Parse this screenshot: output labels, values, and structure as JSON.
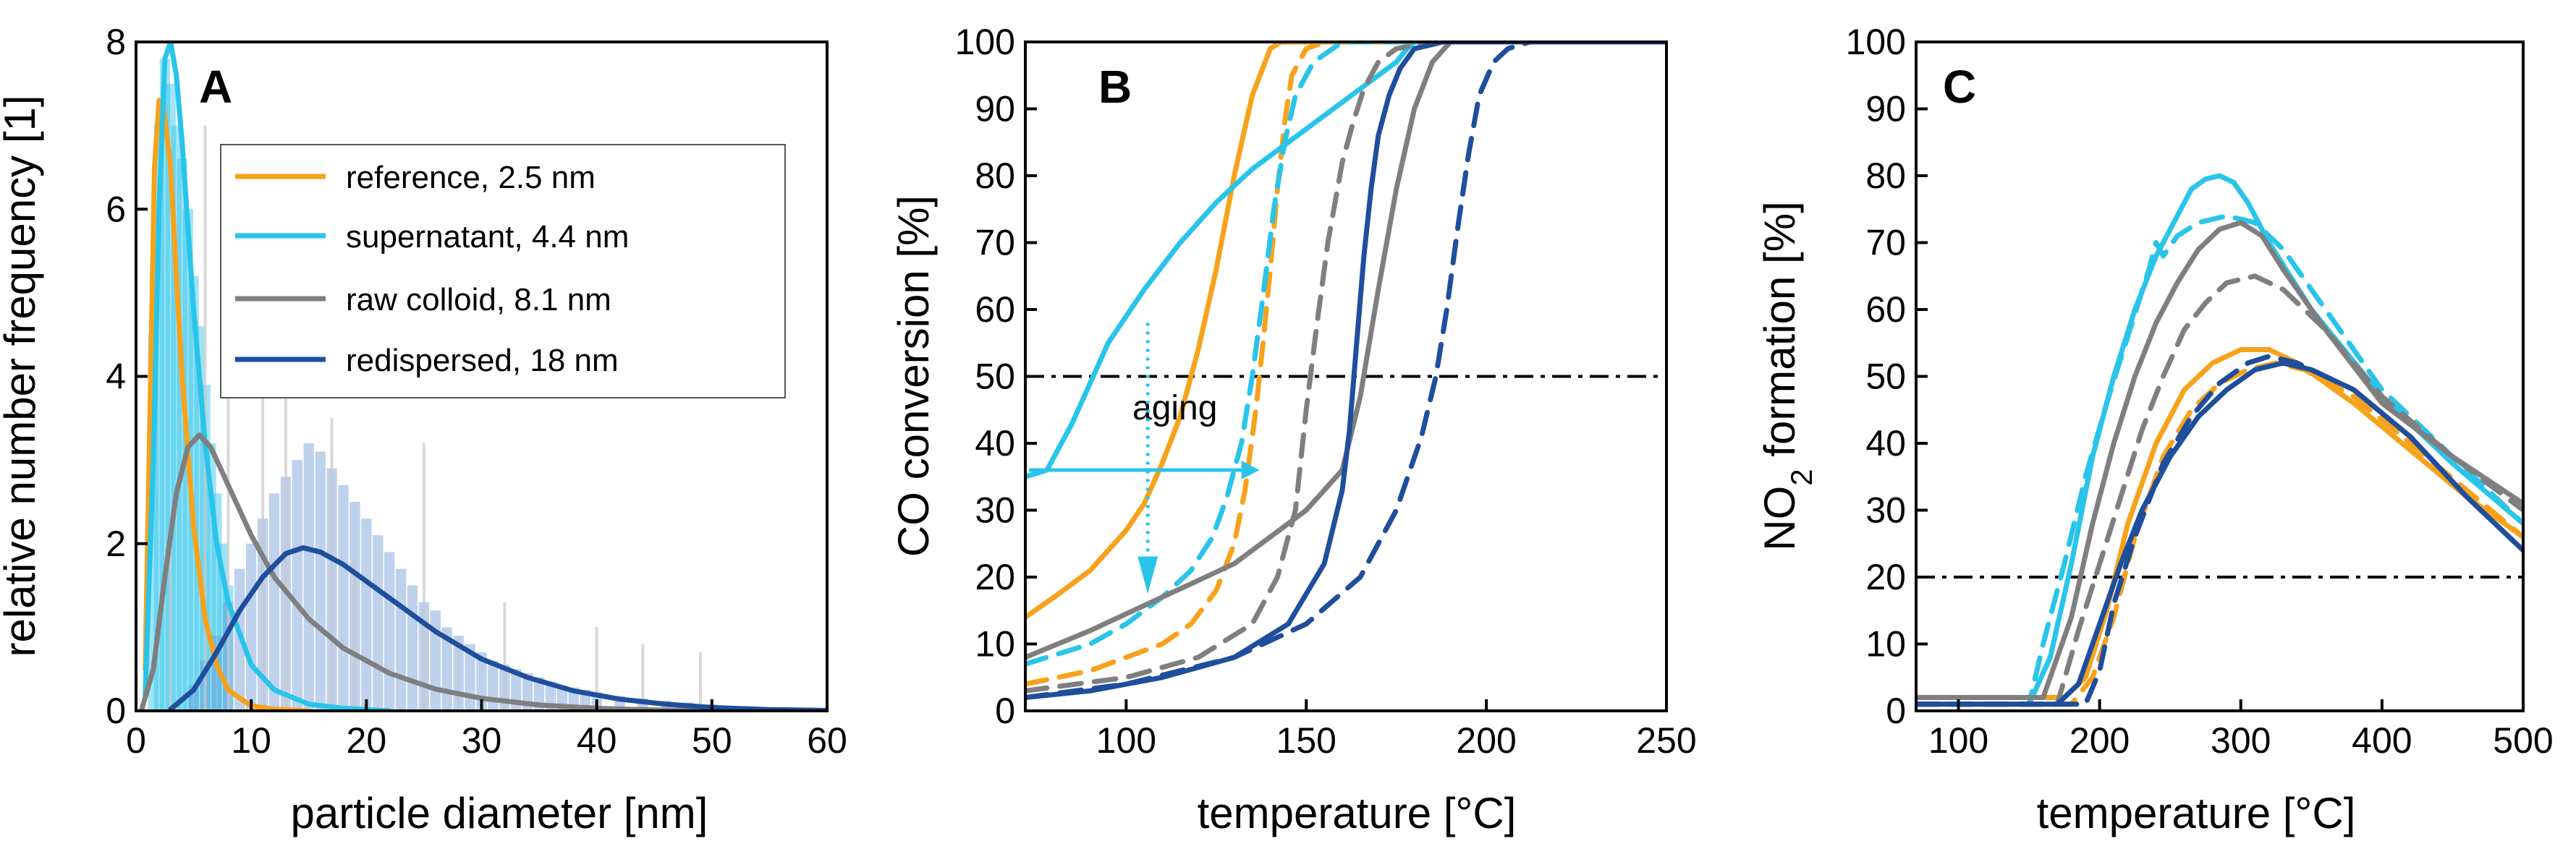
{
  "chart_data": [
    {
      "panel": "A",
      "type": "line",
      "xlabel": "particle diameter [nm]",
      "ylabel": "relative number frequency [1]",
      "xlim": [
        0,
        60
      ],
      "ylim": [
        0,
        8
      ],
      "xticks": [
        0,
        10,
        20,
        30,
        40,
        50,
        60
      ],
      "yticks": [
        0,
        2,
        4,
        6,
        8
      ],
      "legend_position": "top-right",
      "series": [
        {
          "name": "reference, 2.5 nm",
          "color": "#f7a21b",
          "x": [
            0.8,
            1.2,
            1.6,
            2.0,
            2.4,
            3.0,
            3.5,
            4.0,
            5.0,
            6.0,
            7.0,
            8.0,
            10.0,
            12.0,
            15.0
          ],
          "y": [
            0.5,
            3.5,
            6.5,
            7.3,
            7.2,
            6.5,
            5.2,
            4.0,
            2.2,
            1.1,
            0.55,
            0.25,
            0.06,
            0.02,
            0.0
          ]
        },
        {
          "name": "supernatant, 4.4 nm",
          "color": "#29c4ea",
          "x": [
            0.8,
            1.5,
            2.0,
            2.5,
            3.0,
            3.5,
            4.0,
            4.5,
            5.0,
            6.0,
            7.0,
            8.0,
            10.0,
            12.0,
            15.0,
            18.0,
            22.0
          ],
          "y": [
            0.2,
            3.0,
            6.0,
            7.8,
            8.0,
            7.6,
            6.8,
            5.8,
            4.8,
            3.2,
            2.0,
            1.3,
            0.55,
            0.25,
            0.08,
            0.03,
            0.0
          ]
        },
        {
          "name": "raw colloid, 8.1 nm",
          "color": "#7f7f7f",
          "x": [
            0.5,
            1.5,
            2.5,
            3.5,
            4.5,
            5.5,
            6.5,
            8.0,
            10.0,
            12.0,
            15.0,
            18.0,
            22.0,
            26.0,
            30.0,
            35.0,
            40.0,
            45.0,
            50.0
          ],
          "y": [
            0.02,
            0.5,
            1.6,
            2.6,
            3.15,
            3.3,
            3.15,
            2.7,
            2.1,
            1.6,
            1.1,
            0.75,
            0.45,
            0.26,
            0.15,
            0.07,
            0.03,
            0.01,
            0.0
          ]
        },
        {
          "name": "redispersed, 18 nm",
          "color": "#1f4e9c",
          "x": [
            3,
            5,
            7,
            9,
            11,
            13,
            14.5,
            16,
            18,
            20,
            23,
            26,
            30,
            34,
            38,
            42,
            46,
            50,
            55,
            60
          ],
          "y": [
            0.02,
            0.25,
            0.7,
            1.2,
            1.6,
            1.88,
            1.95,
            1.9,
            1.75,
            1.55,
            1.25,
            0.95,
            0.62,
            0.4,
            0.24,
            0.14,
            0.08,
            0.04,
            0.015,
            0.005
          ]
        }
      ],
      "histograms": [
        {
          "name": "supernatant histogram",
          "color": "#29c4ea",
          "x": [
            1.5,
            2.0,
            2.5,
            3.0,
            3.5,
            4.0,
            4.5,
            5.0,
            5.5,
            6.0,
            6.5,
            7.0,
            7.5,
            8.0
          ],
          "y": [
            4.5,
            7.0,
            7.8,
            7.5,
            7.0,
            6.6,
            6.0,
            5.2,
            4.6,
            3.9,
            3.2,
            2.6,
            2.0,
            1.5
          ]
        },
        {
          "name": "redispersed histogram",
          "color": "#6f9ad6",
          "x": [
            5,
            6,
            7,
            8,
            9,
            10,
            11,
            12,
            13,
            14,
            15,
            16,
            17,
            18,
            19,
            20,
            21,
            22,
            23,
            24,
            25,
            26,
            27,
            28,
            29,
            30,
            31,
            32,
            33,
            34,
            35,
            36,
            37,
            38,
            39,
            40,
            42,
            44,
            46,
            48,
            50,
            52,
            54,
            56,
            58
          ],
          "y": [
            0.3,
            0.6,
            0.9,
            1.3,
            1.7,
            2.0,
            2.3,
            2.6,
            2.8,
            3.0,
            3.2,
            3.1,
            2.9,
            2.7,
            2.5,
            2.3,
            2.1,
            1.9,
            1.7,
            1.5,
            1.3,
            1.2,
            1.0,
            0.9,
            0.8,
            0.7,
            0.6,
            0.55,
            0.5,
            0.45,
            0.4,
            0.35,
            0.3,
            0.28,
            0.25,
            0.22,
            0.18,
            0.15,
            0.12,
            0.1,
            0.08,
            0.06,
            0.05,
            0.04,
            0.03
          ]
        },
        {
          "name": "raw colloid histogram",
          "color": "#c8c8c8",
          "x": [
            3,
            6,
            8,
            11,
            13,
            17,
            19,
            25,
            28,
            32,
            40,
            44,
            49
          ],
          "y": [
            2.2,
            7.0,
            4.5,
            5.3,
            5.2,
            3.5,
            1.8,
            3.2,
            0.9,
            1.3,
            1.0,
            0.8,
            0.7
          ]
        }
      ]
    },
    {
      "panel": "B",
      "type": "line",
      "xlabel": "temperature [°C]",
      "ylabel": "CO conversion [%]",
      "xlim": [
        72,
        250
      ],
      "ylim": [
        0,
        100
      ],
      "xticks": [
        100,
        150,
        200,
        250
      ],
      "yticks": [
        0,
        10,
        20,
        30,
        40,
        50,
        60,
        70,
        80,
        90,
        100
      ],
      "reference_line": 50,
      "annotations": [
        {
          "text": "aging"
        }
      ],
      "series": [
        {
          "name": "reference",
          "style": "solid",
          "color": "#f7a21b",
          "x": [
            72,
            80,
            90,
            100,
            105,
            110,
            115,
            120,
            125,
            130,
            135,
            140,
            143,
            145,
            250
          ],
          "y": [
            14,
            17,
            21,
            27,
            31,
            37,
            44,
            54,
            66,
            80,
            92,
            99,
            100,
            100,
            100
          ]
        },
        {
          "name": "reference aged",
          "style": "dashed",
          "color": "#f7a21b",
          "x": [
            72,
            90,
            100,
            110,
            118,
            125,
            130,
            133,
            136,
            138,
            140,
            142,
            144,
            146,
            150,
            155,
            250
          ],
          "y": [
            4,
            6,
            8,
            10,
            13,
            18,
            25,
            33,
            45,
            55,
            66,
            78,
            88,
            95,
            99,
            100,
            100
          ]
        },
        {
          "name": "supernatant",
          "style": "solid",
          "color": "#29c4ea",
          "x": [
            72,
            78,
            85,
            95,
            105,
            115,
            125,
            135,
            145,
            155,
            160,
            165,
            170,
            175,
            178,
            180,
            185,
            250
          ],
          "y": [
            35,
            36,
            43,
            55,
            63,
            70,
            76,
            81,
            85,
            89,
            91,
            93,
            95,
            97,
            99,
            100,
            100,
            100
          ]
        },
        {
          "name": "supernatant aged",
          "style": "dashed",
          "color": "#29c4ea",
          "x": [
            72,
            90,
            100,
            110,
            118,
            124,
            128,
            132,
            135,
            138,
            141,
            144,
            147,
            152,
            160,
            250
          ],
          "y": [
            7,
            10,
            13,
            17,
            21,
            26,
            32,
            40,
            50,
            62,
            75,
            85,
            92,
            97,
            100,
            100
          ]
        },
        {
          "name": "raw colloid",
          "style": "solid",
          "color": "#7f7f7f",
          "x": [
            72,
            90,
            110,
            130,
            150,
            160,
            165,
            170,
            175,
            180,
            185,
            190,
            250
          ],
          "y": [
            8,
            12,
            17,
            22,
            30,
            36,
            47,
            63,
            78,
            90,
            97,
            100,
            100
          ]
        },
        {
          "name": "raw colloid aged",
          "style": "dashed",
          "color": "#7f7f7f",
          "x": [
            72,
            100,
            120,
            135,
            142,
            147,
            150,
            153,
            156,
            160,
            163,
            166,
            170,
            175,
            185,
            250
          ],
          "y": [
            3,
            5,
            8,
            13,
            20,
            30,
            45,
            58,
            70,
            82,
            88,
            93,
            97,
            99,
            100,
            100
          ]
        },
        {
          "name": "redispersed",
          "style": "solid",
          "color": "#1f4e9c",
          "x": [
            72,
            90,
            110,
            130,
            145,
            155,
            160,
            162,
            164,
            166,
            168,
            170,
            173,
            176,
            180,
            188,
            195,
            250
          ],
          "y": [
            2,
            3,
            5,
            8,
            13,
            22,
            33,
            42,
            55,
            68,
            78,
            86,
            92,
            96,
            99,
            100,
            100,
            100
          ]
        },
        {
          "name": "redispersed aged",
          "style": "dashed",
          "color": "#1f4e9c",
          "x": [
            72,
            100,
            130,
            150,
            165,
            175,
            182,
            186,
            189,
            192,
            195,
            198,
            202,
            206,
            212,
            250
          ],
          "y": [
            2,
            4,
            8,
            13,
            20,
            30,
            41,
            50,
            60,
            72,
            83,
            92,
            97,
            99,
            100,
            100
          ]
        }
      ]
    },
    {
      "panel": "C",
      "type": "line",
      "xlabel": "temperature [°C]",
      "ylabel_prefix": "NO",
      "ylabel_sub": "2",
      "ylabel_suffix": " formation [%]",
      "xlim": [
        70,
        500
      ],
      "ylim": [
        0,
        100
      ],
      "xticks": [
        100,
        200,
        300,
        400,
        500
      ],
      "yticks": [
        0,
        10,
        20,
        30,
        40,
        50,
        60,
        70,
        80,
        90,
        100
      ],
      "reference_line": 20,
      "series": [
        {
          "name": "reference",
          "style": "solid",
          "color": "#f7a21b",
          "x": [
            70,
            150,
            175,
            190,
            205,
            220,
            240,
            260,
            280,
            300,
            320,
            340,
            380,
            420,
            460,
            500
          ],
          "y": [
            2,
            2,
            2,
            5,
            15,
            28,
            40,
            48,
            52,
            54,
            54,
            52,
            46,
            39,
            32,
            26
          ]
        },
        {
          "name": "reference aged",
          "style": "dashed",
          "color": "#f7a21b",
          "x": [
            70,
            180,
            195,
            210,
            225,
            245,
            265,
            285,
            305,
            325,
            345,
            380,
            420,
            460,
            500
          ],
          "y": [
            1,
            1,
            5,
            14,
            26,
            38,
            45,
            49,
            51,
            52,
            51,
            47,
            40,
            33,
            26
          ]
        },
        {
          "name": "supernatant",
          "style": "solid",
          "color": "#29c4ea",
          "x": [
            70,
            150,
            165,
            180,
            195,
            210,
            225,
            240,
            255,
            265,
            275,
            285,
            295,
            305,
            320,
            350,
            400,
            450,
            500
          ],
          "y": [
            1,
            1,
            8,
            22,
            38,
            50,
            60,
            68,
            74,
            78,
            79.5,
            80,
            79,
            76,
            70,
            60,
            47,
            37,
            28
          ]
        },
        {
          "name": "supernatant aged",
          "style": "dashed",
          "color": "#29c4ea",
          "x": [
            70,
            150,
            160,
            175,
            190,
            205,
            220,
            235,
            240,
            245,
            255,
            270,
            290,
            310,
            330,
            360,
            400,
            450,
            500
          ],
          "y": [
            1,
            1,
            10,
            22,
            35,
            46,
            56,
            66,
            70,
            68,
            71,
            73,
            74,
            73,
            69,
            60,
            48,
            38,
            28
          ]
        },
        {
          "name": "raw colloid",
          "style": "solid",
          "color": "#7f7f7f",
          "x": [
            70,
            160,
            180,
            195,
            210,
            225,
            240,
            255,
            270,
            285,
            300,
            315,
            330,
            360,
            400,
            450,
            500
          ],
          "y": [
            2,
            2,
            14,
            28,
            40,
            50,
            58,
            64,
            69,
            72,
            73,
            71,
            66,
            57,
            46,
            38,
            31
          ]
        },
        {
          "name": "raw colloid aged",
          "style": "dashed",
          "color": "#7f7f7f",
          "x": [
            70,
            170,
            185,
            200,
            215,
            230,
            245,
            260,
            275,
            290,
            310,
            330,
            360,
            400,
            450,
            500
          ],
          "y": [
            1,
            1,
            12,
            22,
            32,
            42,
            50,
            57,
            61,
            64,
            65,
            63,
            57,
            47,
            38,
            30
          ]
        },
        {
          "name": "redispersed",
          "style": "solid",
          "color": "#1f4e9c",
          "x": [
            70,
            170,
            185,
            200,
            215,
            230,
            250,
            270,
            290,
            310,
            330,
            350,
            380,
            420,
            460,
            500
          ],
          "y": [
            1,
            1,
            4,
            13,
            22,
            30,
            38,
            44,
            48,
            51,
            52,
            51,
            48,
            41,
            32,
            24
          ]
        },
        {
          "name": "redispersed aged",
          "style": "dashed",
          "color": "#1f4e9c",
          "x": [
            70,
            190,
            200,
            210,
            225,
            245,
            265,
            285,
            305,
            320,
            340,
            380,
            420,
            460,
            500
          ],
          "y": [
            1,
            1,
            6,
            16,
            26,
            37,
            44,
            49,
            52,
            53,
            52,
            48,
            41,
            32,
            24
          ]
        }
      ]
    }
  ]
}
